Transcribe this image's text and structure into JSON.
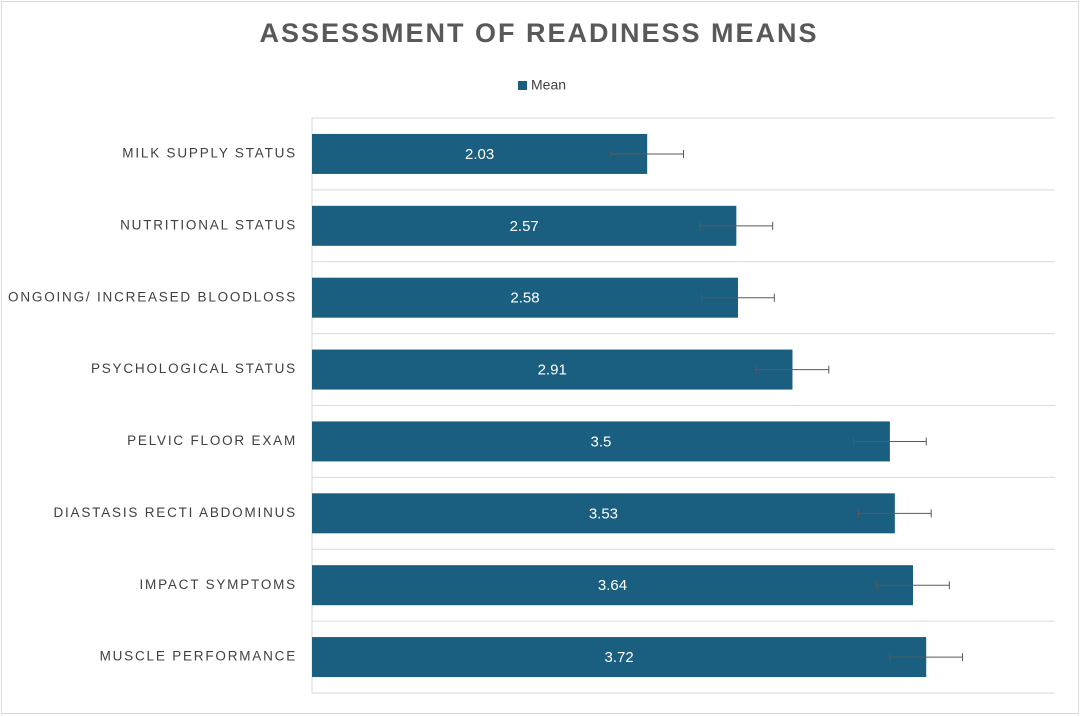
{
  "chart_data": {
    "type": "bar",
    "orientation": "horizontal",
    "title": "ASSESSMENT OF READINESS MEANS",
    "categories": [
      "MILK SUPPLY STATUS",
      "NUTRITIONAL STATUS",
      "ONGOING/ INCREASED BLOODLOSS",
      "PSYCHOLOGICAL STATUS",
      "PELVIC FLOOR EXAM",
      "DIASTASIS RECTI ABDOMINUS",
      "IMPACT SYMPTOMS",
      "MUSCLE PERFORMANCE"
    ],
    "series": [
      {
        "name": "Mean",
        "color": "#1a5e80",
        "values": [
          2.03,
          2.57,
          2.58,
          2.91,
          3.5,
          3.53,
          3.64,
          3.72
        ],
        "errors": [
          0.22,
          0.22,
          0.22,
          0.22,
          0.22,
          0.22,
          0.22,
          0.22
        ]
      }
    ],
    "xlim": [
      0,
      4.5
    ],
    "legend": "top"
  }
}
